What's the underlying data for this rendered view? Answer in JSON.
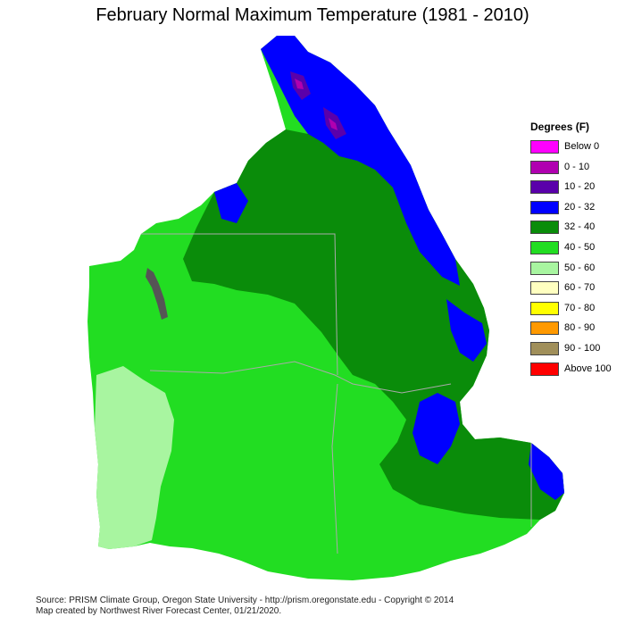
{
  "title": "February Normal Maximum Temperature (1981 - 2010)",
  "legend": {
    "title": "Degrees (F)",
    "items": [
      {
        "label": "Below 0",
        "color": "#ff00ff"
      },
      {
        "label": "0 - 10",
        "color": "#b000b0"
      },
      {
        "label": "10 - 20",
        "color": "#5a00aa"
      },
      {
        "label": "20 - 32",
        "color": "#0000ff"
      },
      {
        "label": "32 - 40",
        "color": "#0a8c0a"
      },
      {
        "label": "40 - 50",
        "color": "#22dd22"
      },
      {
        "label": "50 - 60",
        "color": "#a8f5a0"
      },
      {
        "label": "60 - 70",
        "color": "#ffffc0"
      },
      {
        "label": "70 - 80",
        "color": "#ffff00"
      },
      {
        "label": "80 - 90",
        "color": "#ff9900"
      },
      {
        "label": "90 - 100",
        "color": "#a08f5a"
      },
      {
        "label": "Above 100",
        "color": "#ff0000"
      }
    ]
  },
  "source": {
    "line1": "Source: PRISM Climate Group, Oregon State University - http://prism.oregonstate.edu - Copyright © 2014",
    "line2": "Map created by Northwest River Forecast Center, 01/21/2020."
  }
}
